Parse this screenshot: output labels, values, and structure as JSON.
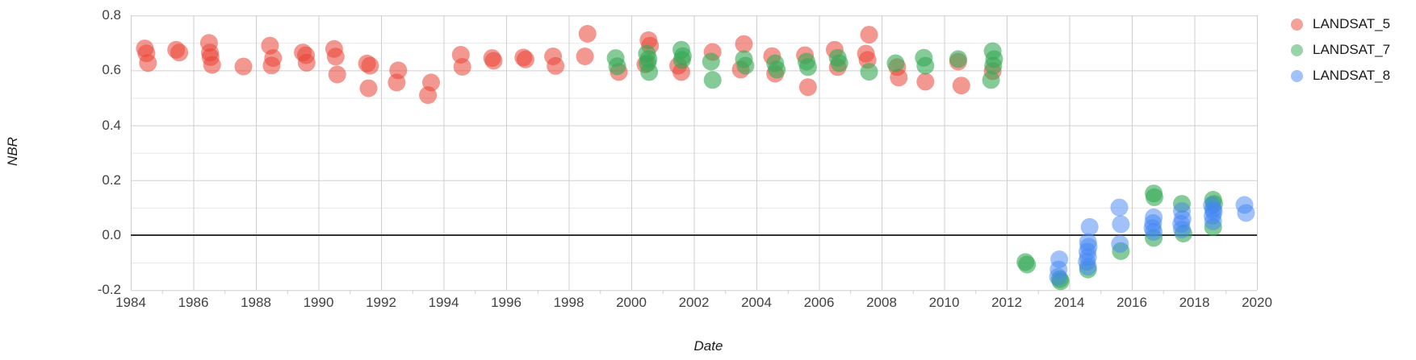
{
  "chart_data": {
    "type": "scatter",
    "title": "",
    "xlabel": "Date",
    "ylabel": "NBR",
    "xlim": [
      1984,
      2020
    ],
    "ylim": [
      -0.2,
      0.8
    ],
    "x_tick_labels": [
      "1984",
      "1986",
      "1988",
      "1990",
      "1992",
      "1994",
      "1996",
      "1998",
      "2000",
      "2002",
      "2004",
      "2006",
      "2008",
      "2010",
      "2012",
      "2014",
      "2016",
      "2018",
      "2020"
    ],
    "x_tick_values": [
      1984,
      1986,
      1988,
      1990,
      1992,
      1994,
      1996,
      1998,
      2000,
      2002,
      2004,
      2006,
      2008,
      2010,
      2012,
      2014,
      2016,
      2018,
      2020
    ],
    "x_minor_tick_values": [
      1985,
      1987,
      1989,
      1991,
      1993,
      1995,
      1997,
      1999,
      2001,
      2003,
      2005,
      2007,
      2009,
      2011,
      2013,
      2015,
      2017,
      2019
    ],
    "y_tick_labels": [
      "-0.2",
      "0.0",
      "0.2",
      "0.4",
      "0.6",
      "0.8"
    ],
    "y_tick_values": [
      -0.2,
      0.0,
      0.2,
      0.4,
      0.6,
      0.8
    ],
    "y_minor_tick_values": [
      -0.1,
      0.1,
      0.3,
      0.5,
      0.7
    ],
    "grid": "on",
    "baseline": 0.0,
    "legend_position": "right",
    "point_radius": 11,
    "series": [
      {
        "name": "LANDSAT_5",
        "color": "#ea4335",
        "opacity": 0.55,
        "points": [
          [
            1984.45,
            0.68
          ],
          [
            1984.5,
            0.662
          ],
          [
            1984.55,
            0.627
          ],
          [
            1985.45,
            0.675
          ],
          [
            1985.55,
            0.665
          ],
          [
            1986.5,
            0.7
          ],
          [
            1986.53,
            0.665
          ],
          [
            1986.55,
            0.648
          ],
          [
            1986.6,
            0.62
          ],
          [
            1987.6,
            0.614
          ],
          [
            1988.45,
            0.69
          ],
          [
            1988.55,
            0.645
          ],
          [
            1988.5,
            0.618
          ],
          [
            1989.5,
            0.665
          ],
          [
            1989.6,
            0.655
          ],
          [
            1989.62,
            0.628
          ],
          [
            1990.5,
            0.678
          ],
          [
            1990.55,
            0.65
          ],
          [
            1990.6,
            0.585
          ],
          [
            1991.55,
            0.625
          ],
          [
            1991.65,
            0.617
          ],
          [
            1991.6,
            0.535
          ],
          [
            1992.55,
            0.6
          ],
          [
            1992.5,
            0.556
          ],
          [
            1993.6,
            0.556
          ],
          [
            1993.5,
            0.51
          ],
          [
            1994.55,
            0.657
          ],
          [
            1994.6,
            0.613
          ],
          [
            1995.55,
            0.645
          ],
          [
            1995.6,
            0.635
          ],
          [
            1996.55,
            0.647
          ],
          [
            1996.62,
            0.64
          ],
          [
            1997.5,
            0.651
          ],
          [
            1997.58,
            0.616
          ],
          [
            1998.6,
            0.733
          ],
          [
            1998.52,
            0.651
          ],
          [
            1999.6,
            0.594
          ],
          [
            2000.55,
            0.71
          ],
          [
            2000.6,
            0.69
          ],
          [
            2000.45,
            0.622
          ],
          [
            2001.5,
            0.617
          ],
          [
            2001.6,
            0.594
          ],
          [
            2002.6,
            0.667
          ],
          [
            2003.6,
            0.696
          ],
          [
            2003.5,
            0.603
          ],
          [
            2004.5,
            0.652
          ],
          [
            2004.6,
            0.588
          ],
          [
            2005.55,
            0.655
          ],
          [
            2005.65,
            0.539
          ],
          [
            2006.5,
            0.675
          ],
          [
            2006.6,
            0.612
          ],
          [
            2007.6,
            0.73
          ],
          [
            2007.5,
            0.661
          ],
          [
            2007.55,
            0.638
          ],
          [
            2008.5,
            0.612
          ],
          [
            2008.55,
            0.574
          ],
          [
            2009.4,
            0.559
          ],
          [
            2010.45,
            0.632
          ],
          [
            2010.55,
            0.545
          ],
          [
            2011.55,
            0.597
          ]
        ]
      },
      {
        "name": "LANDSAT_7",
        "color": "#34a853",
        "opacity": 0.6,
        "points": [
          [
            1999.5,
            0.645
          ],
          [
            1999.55,
            0.615
          ],
          [
            2000.5,
            0.661
          ],
          [
            2000.55,
            0.641
          ],
          [
            2000.52,
            0.626
          ],
          [
            2000.57,
            0.594
          ],
          [
            2001.6,
            0.675
          ],
          [
            2001.65,
            0.652
          ],
          [
            2001.62,
            0.638
          ],
          [
            2002.55,
            0.632
          ],
          [
            2002.6,
            0.565
          ],
          [
            2003.6,
            0.641
          ],
          [
            2003.65,
            0.617
          ],
          [
            2004.6,
            0.626
          ],
          [
            2004.65,
            0.603
          ],
          [
            2005.6,
            0.632
          ],
          [
            2005.65,
            0.612
          ],
          [
            2006.6,
            0.646
          ],
          [
            2006.65,
            0.626
          ],
          [
            2007.6,
            0.595
          ],
          [
            2008.45,
            0.626
          ],
          [
            2009.35,
            0.646
          ],
          [
            2009.4,
            0.617
          ],
          [
            2010.45,
            0.641
          ],
          [
            2011.55,
            0.67
          ],
          [
            2011.6,
            0.641
          ],
          [
            2011.57,
            0.617
          ],
          [
            2011.5,
            0.565
          ],
          [
            2012.6,
            -0.098
          ],
          [
            2012.65,
            -0.107
          ],
          [
            2013.7,
            -0.16
          ],
          [
            2013.72,
            -0.168
          ],
          [
            2014.6,
            -0.125
          ],
          [
            2015.65,
            -0.058
          ],
          [
            2016.7,
            0.152
          ],
          [
            2016.72,
            0.138
          ],
          [
            2016.7,
            -0.01
          ],
          [
            2017.6,
            0.114
          ],
          [
            2017.65,
            0.006
          ],
          [
            2018.6,
            0.129
          ],
          [
            2018.63,
            0.114
          ],
          [
            2018.6,
            0.029
          ]
        ]
      },
      {
        "name": "LANDSAT_8",
        "color": "#4285f4",
        "opacity": 0.5,
        "points": [
          [
            2013.68,
            -0.088
          ],
          [
            2013.66,
            -0.125
          ],
          [
            2013.64,
            -0.152
          ],
          [
            2014.65,
            0.03
          ],
          [
            2014.6,
            -0.025
          ],
          [
            2014.62,
            -0.042
          ],
          [
            2014.58,
            -0.06
          ],
          [
            2014.6,
            -0.08
          ],
          [
            2014.56,
            -0.097
          ],
          [
            2014.6,
            -0.115
          ],
          [
            2015.6,
            0.101
          ],
          [
            2015.65,
            0.04
          ],
          [
            2015.62,
            -0.032
          ],
          [
            2016.7,
            0.065
          ],
          [
            2016.68,
            0.044
          ],
          [
            2016.66,
            0.026
          ],
          [
            2016.7,
            0.012
          ],
          [
            2017.6,
            0.088
          ],
          [
            2017.62,
            0.059
          ],
          [
            2017.58,
            0.041
          ],
          [
            2017.6,
            0.021
          ],
          [
            2018.56,
            0.109
          ],
          [
            2018.6,
            0.094
          ],
          [
            2018.62,
            0.085
          ],
          [
            2018.58,
            0.07
          ],
          [
            2018.6,
            0.05
          ],
          [
            2019.6,
            0.11
          ],
          [
            2019.65,
            0.081
          ]
        ]
      }
    ]
  },
  "colors": {
    "major_gridline": "#cfcfcf",
    "minor_gridline": "#e7e7e7",
    "baseline": "#333333",
    "tick_text": "#424242",
    "axis_title_text": "#1c1c1c",
    "legend_text": "#1a1a1a",
    "background": "#ffffff"
  }
}
